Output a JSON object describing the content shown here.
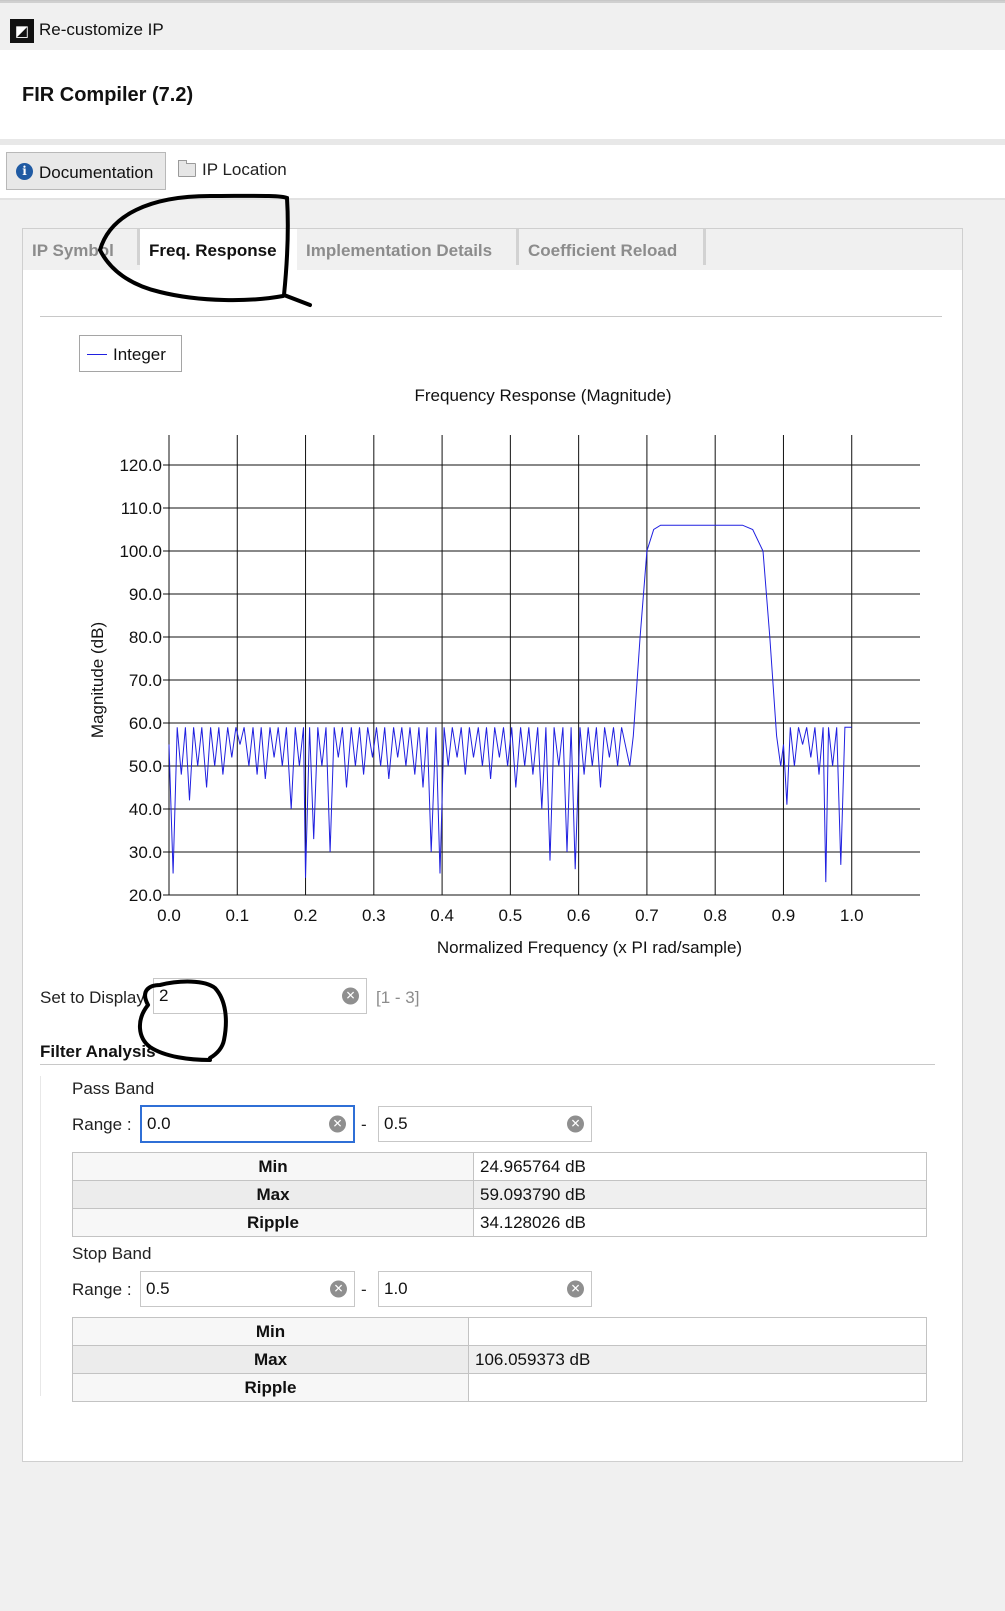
{
  "window": {
    "title": "Re-customize IP"
  },
  "ip": {
    "name": "FIR Compiler (7.2)"
  },
  "toolbar": {
    "documentation": "Documentation",
    "ip_location": "IP Location"
  },
  "tabs": [
    {
      "label": "IP Symbol",
      "active": false
    },
    {
      "label": "Freq. Response",
      "active": true
    },
    {
      "label": "Implementation Details",
      "active": false
    },
    {
      "label": "Coefficient Reload",
      "active": false
    }
  ],
  "legend": {
    "label": "Integer",
    "color": "#2020e0"
  },
  "chart_data": {
    "type": "line",
    "title": "Frequency Response (Magnitude)",
    "xlabel": "Normalized Frequency (x PI rad/sample)",
    "ylabel": "Magnitude (dB)",
    "xlim": [
      0.0,
      1.1
    ],
    "ylim": [
      20.0,
      120.0
    ],
    "xticks": [
      "0.0",
      "0.1",
      "0.2",
      "0.3",
      "0.4",
      "0.5",
      "0.6",
      "0.7",
      "0.8",
      "0.9",
      "1.0"
    ],
    "yticks": [
      "20.0",
      "30.0",
      "40.0",
      "50.0",
      "60.0",
      "70.0",
      "80.0",
      "90.0",
      "100.0",
      "110.0",
      "120.0"
    ],
    "grid": true,
    "legend_position": "top-left",
    "series": [
      {
        "name": "Integer",
        "color": "#2020e0",
        "description": "stopband ripple ~50-59 dB with nulls, passband ~106 dB between 0.7 and 0.85",
        "points": [
          [
            0.0,
            55
          ],
          [
            0.006,
            25
          ],
          [
            0.012,
            59
          ],
          [
            0.018,
            48
          ],
          [
            0.024,
            59
          ],
          [
            0.03,
            42
          ],
          [
            0.036,
            59
          ],
          [
            0.042,
            50
          ],
          [
            0.048,
            59
          ],
          [
            0.055,
            45
          ],
          [
            0.061,
            59
          ],
          [
            0.067,
            50
          ],
          [
            0.073,
            59
          ],
          [
            0.079,
            48
          ],
          [
            0.086,
            59
          ],
          [
            0.092,
            52
          ],
          [
            0.098,
            59
          ],
          [
            0.104,
            55
          ],
          [
            0.11,
            59
          ],
          [
            0.117,
            50
          ],
          [
            0.123,
            59
          ],
          [
            0.129,
            48
          ],
          [
            0.135,
            59
          ],
          [
            0.141,
            47
          ],
          [
            0.148,
            59
          ],
          [
            0.154,
            52
          ],
          [
            0.16,
            59
          ],
          [
            0.166,
            50
          ],
          [
            0.172,
            59
          ],
          [
            0.179,
            40
          ],
          [
            0.185,
            59
          ],
          [
            0.191,
            50
          ],
          [
            0.197,
            59
          ],
          [
            0.2,
            24
          ],
          [
            0.206,
            59
          ],
          [
            0.212,
            33
          ],
          [
            0.218,
            59
          ],
          [
            0.224,
            50
          ],
          [
            0.23,
            59
          ],
          [
            0.236,
            30
          ],
          [
            0.242,
            59
          ],
          [
            0.248,
            52
          ],
          [
            0.254,
            59
          ],
          [
            0.26,
            45
          ],
          [
            0.267,
            59
          ],
          [
            0.273,
            50
          ],
          [
            0.279,
            59
          ],
          [
            0.285,
            48
          ],
          [
            0.291,
            59
          ],
          [
            0.298,
            52
          ],
          [
            0.304,
            59
          ],
          [
            0.31,
            50
          ],
          [
            0.316,
            59
          ],
          [
            0.322,
            47
          ],
          [
            0.329,
            59
          ],
          [
            0.335,
            52
          ],
          [
            0.341,
            59
          ],
          [
            0.347,
            50
          ],
          [
            0.353,
            59
          ],
          [
            0.36,
            48
          ],
          [
            0.366,
            59
          ],
          [
            0.372,
            45
          ],
          [
            0.378,
            59
          ],
          [
            0.384,
            30
          ],
          [
            0.391,
            59
          ],
          [
            0.397,
            25
          ],
          [
            0.403,
            59
          ],
          [
            0.409,
            50
          ],
          [
            0.415,
            59
          ],
          [
            0.422,
            52
          ],
          [
            0.428,
            59
          ],
          [
            0.434,
            48
          ],
          [
            0.44,
            59
          ],
          [
            0.446,
            52
          ],
          [
            0.453,
            59
          ],
          [
            0.459,
            50
          ],
          [
            0.465,
            59
          ],
          [
            0.471,
            47
          ],
          [
            0.477,
            59
          ],
          [
            0.484,
            52
          ],
          [
            0.49,
            59
          ],
          [
            0.496,
            50
          ],
          [
            0.502,
            59
          ],
          [
            0.508,
            45
          ],
          [
            0.515,
            59
          ],
          [
            0.521,
            50
          ],
          [
            0.527,
            59
          ],
          [
            0.533,
            48
          ],
          [
            0.54,
            59
          ],
          [
            0.546,
            40
          ],
          [
            0.552,
            59
          ],
          [
            0.558,
            28
          ],
          [
            0.564,
            59
          ],
          [
            0.571,
            50
          ],
          [
            0.577,
            59
          ],
          [
            0.583,
            30
          ],
          [
            0.589,
            59
          ],
          [
            0.595,
            26
          ],
          [
            0.602,
            59
          ],
          [
            0.608,
            48
          ],
          [
            0.614,
            59
          ],
          [
            0.62,
            50
          ],
          [
            0.626,
            59
          ],
          [
            0.632,
            45
          ],
          [
            0.638,
            59
          ],
          [
            0.645,
            52
          ],
          [
            0.651,
            59
          ],
          [
            0.657,
            50
          ],
          [
            0.663,
            59
          ],
          [
            0.675,
            50
          ],
          [
            0.68,
            57
          ],
          [
            0.69,
            80
          ],
          [
            0.7,
            100
          ],
          [
            0.71,
            105
          ],
          [
            0.72,
            106
          ],
          [
            0.74,
            106
          ],
          [
            0.76,
            106
          ],
          [
            0.78,
            106
          ],
          [
            0.8,
            106
          ],
          [
            0.82,
            106
          ],
          [
            0.84,
            106
          ],
          [
            0.855,
            105
          ],
          [
            0.87,
            100
          ],
          [
            0.88,
            80
          ],
          [
            0.89,
            57
          ],
          [
            0.896,
            50
          ],
          [
            0.9,
            55
          ],
          [
            0.905,
            41
          ],
          [
            0.91,
            59
          ],
          [
            0.916,
            50
          ],
          [
            0.922,
            59
          ],
          [
            0.928,
            55
          ],
          [
            0.934,
            59
          ],
          [
            0.94,
            52
          ],
          [
            0.946,
            59
          ],
          [
            0.952,
            48
          ],
          [
            0.958,
            59
          ],
          [
            0.962,
            23
          ],
          [
            0.966,
            59
          ],
          [
            0.972,
            50
          ],
          [
            0.978,
            59
          ],
          [
            0.984,
            27
          ],
          [
            0.99,
            59
          ],
          [
            1.0,
            59
          ]
        ]
      }
    ]
  },
  "display": {
    "label": "Set to Display",
    "value": "2",
    "range_hint": "[1 - 3]"
  },
  "filter_analysis": {
    "title": "Filter Analysis",
    "pass_band": {
      "title": "Pass Band",
      "range_label": "Range :",
      "from": "0.0",
      "to": "0.5",
      "rows": [
        {
          "key": "Min",
          "value": "24.965764 dB"
        },
        {
          "key": "Max",
          "value": "59.093790 dB"
        },
        {
          "key": "Ripple",
          "value": "34.128026 dB"
        }
      ]
    },
    "stop_band": {
      "title": "Stop Band",
      "range_label": "Range :",
      "from": "0.5",
      "to": "1.0",
      "rows": [
        {
          "key": "Min",
          "value": ""
        },
        {
          "key": "Max",
          "value": "106.059373 dB"
        },
        {
          "key": "Ripple",
          "value": ""
        }
      ]
    }
  },
  "range_separator": "-"
}
